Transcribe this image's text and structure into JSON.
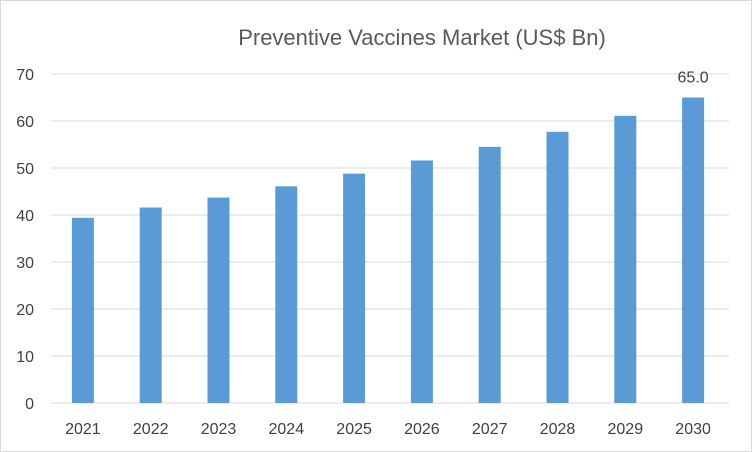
{
  "chart_data": {
    "type": "bar",
    "title": "Preventive Vaccines Market (US$ Bn)",
    "xlabel": "",
    "ylabel": "",
    "categories": [
      "2021",
      "2022",
      "2023",
      "2024",
      "2025",
      "2026",
      "2027",
      "2028",
      "2029",
      "2030"
    ],
    "values": [
      39.4,
      41.6,
      43.7,
      46.1,
      48.8,
      51.6,
      54.5,
      57.7,
      61.1,
      65.0
    ],
    "ylim": [
      0,
      70
    ],
    "yticks": [
      "0",
      "10",
      "20",
      "30",
      "40",
      "50",
      "60",
      "70"
    ],
    "data_labels": [
      {
        "category": "2030",
        "text": "65.0"
      }
    ],
    "bar_color": "#5b9bd5",
    "grid": true,
    "legend": "none"
  }
}
